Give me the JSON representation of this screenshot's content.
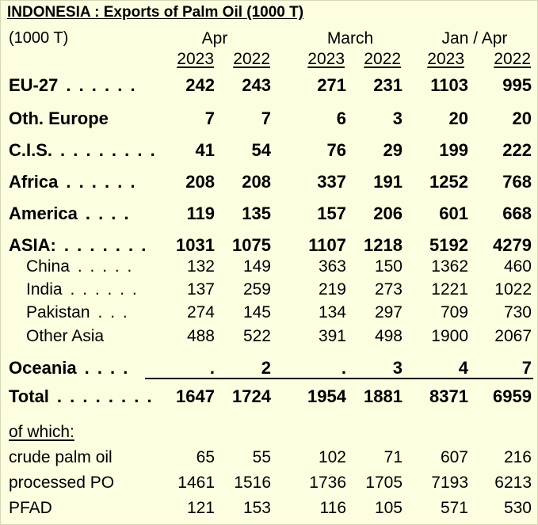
{
  "title": "INDONESIA :  Exports of Palm Oil (1000 T)",
  "unit_label": "(1000 T)",
  "periods": [
    "Apr",
    "March",
    "Jan / Apr"
  ],
  "years": [
    "2023",
    "2022",
    "2023",
    "2022",
    "2023",
    "2022"
  ],
  "rows": [
    {
      "label": "EU-27",
      "dots": ". . . . . .",
      "style": "bold",
      "values": [
        "242",
        "243",
        "271",
        "231",
        "1103",
        "995"
      ]
    },
    {
      "label": "Oth. Europe",
      "dots": "",
      "style": "bold",
      "values": [
        "7",
        "7",
        "6",
        "3",
        "20",
        "20"
      ]
    },
    {
      "label": "C.I.S.",
      "dots": ". . . . . . . .",
      "style": "bold",
      "values": [
        "41",
        "54",
        "76",
        "29",
        "199",
        "222"
      ]
    },
    {
      "label": "Africa",
      "dots": ". . . . . .",
      "style": "bold",
      "values": [
        "208",
        "208",
        "337",
        "191",
        "1252",
        "768"
      ]
    },
    {
      "label": "America",
      "dots": ". . . .",
      "style": "bold",
      "values": [
        "119",
        "135",
        "157",
        "206",
        "601",
        "668"
      ]
    },
    {
      "label": "ASIA:",
      "dots": ". . . . . . .",
      "style": "bold",
      "values": [
        "1031",
        "1075",
        "1107",
        "1218",
        "5192",
        "4279"
      ]
    },
    {
      "label": "China",
      "dots": ". . . . .",
      "style": "sub",
      "values": [
        "132",
        "149",
        "363",
        "150",
        "1362",
        "460"
      ]
    },
    {
      "label": "India",
      "dots": ". . . . . .",
      "style": "sub",
      "values": [
        "137",
        "259",
        "219",
        "273",
        "1221",
        "1022"
      ]
    },
    {
      "label": "Pakistan",
      "dots": ". . .",
      "style": "sub",
      "values": [
        "274",
        "145",
        "134",
        "297",
        "709",
        "730"
      ]
    },
    {
      "label": "Other Asia",
      "dots": "",
      "style": "sub",
      "values": [
        "488",
        "522",
        "391",
        "498",
        "1900",
        "2067"
      ]
    },
    {
      "label": "Oceania",
      "dots": ". . . .",
      "style": "bold",
      "values": [
        ".",
        "2",
        ".",
        "3",
        "4",
        "7"
      ]
    },
    {
      "label": "Total",
      "dots": ". . . . . . . .",
      "style": "bold",
      "values": [
        "1647",
        "1724",
        "1954",
        "1881",
        "8371",
        "6959"
      ]
    }
  ],
  "of_which_label": "of which:",
  "of_which": [
    {
      "label": "crude palm oil",
      "values": [
        "65",
        "55",
        "102",
        "71",
        "607",
        "216"
      ]
    },
    {
      "label": "processed PO",
      "values": [
        "1461",
        "1516",
        "1736",
        "1705",
        "7193",
        "6213"
      ]
    },
    {
      "label": "PFAD",
      "values": [
        "121",
        "153",
        "116",
        "105",
        "571",
        "530"
      ]
    }
  ]
}
